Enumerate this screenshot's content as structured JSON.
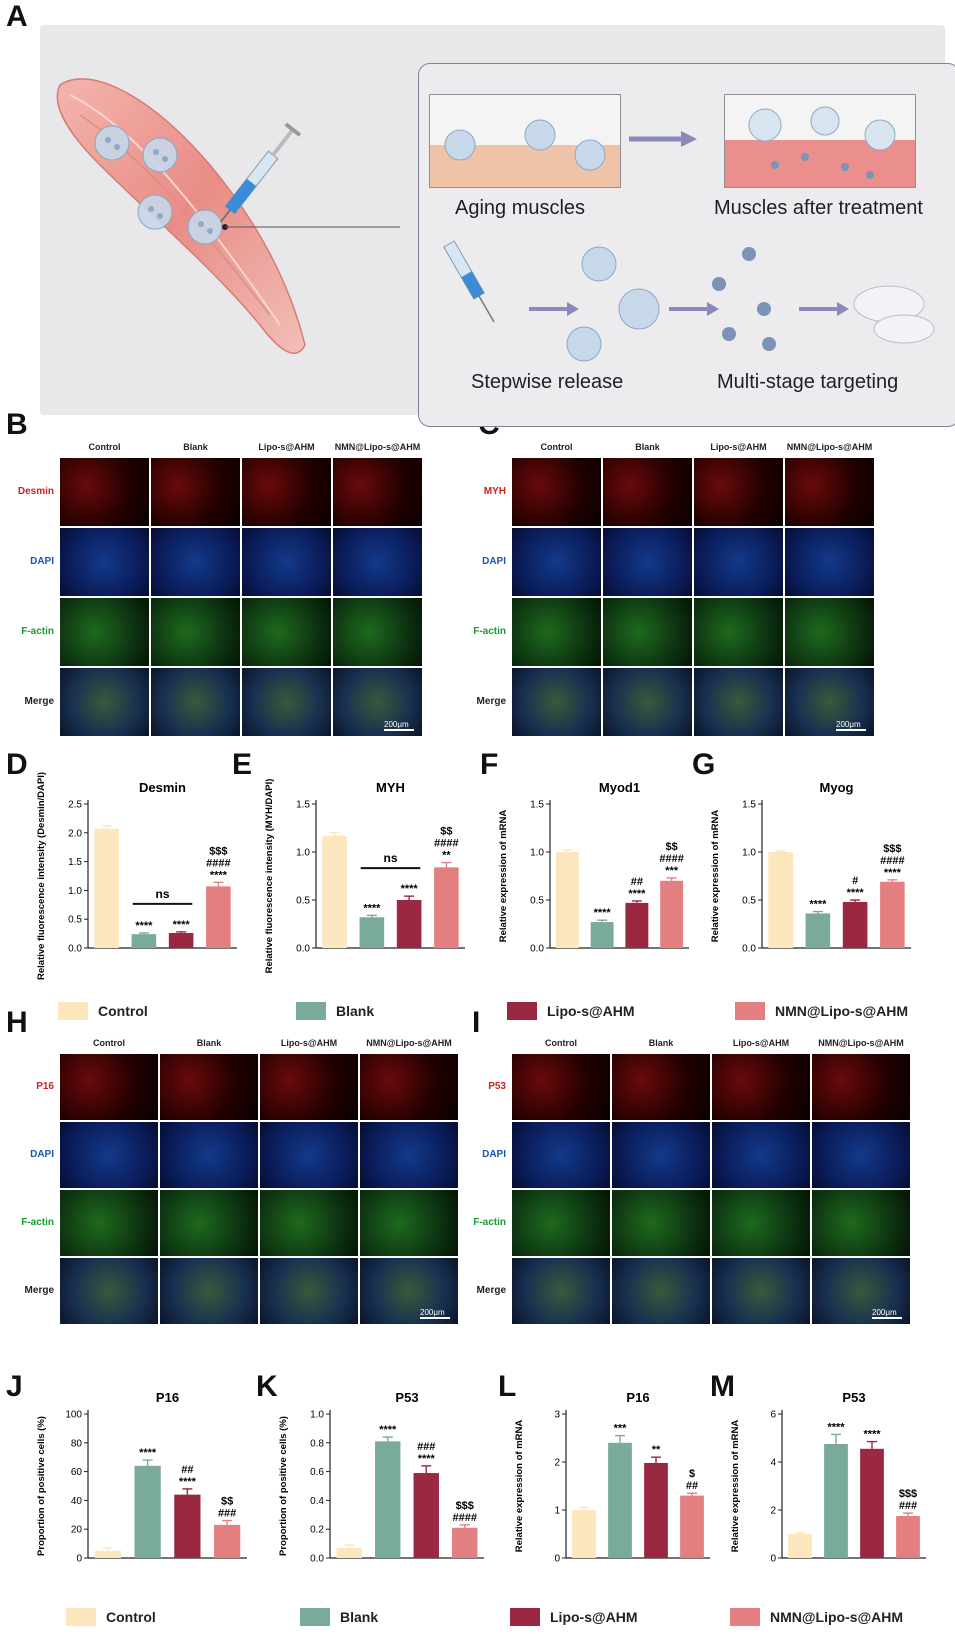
{
  "panel_labels": {
    "A": "A",
    "B": "B",
    "C": "C",
    "D": "D",
    "E": "E",
    "F": "F",
    "G": "G",
    "H": "H",
    "I": "I",
    "J": "J",
    "K": "K",
    "L": "L",
    "M": "M"
  },
  "schematic": {
    "aging": "Aging muscles",
    "after": "Muscles after treatment",
    "stepwise": "Stepwise release",
    "multistage": "Multi-stage targeting"
  },
  "groups": [
    "Control",
    "Blank",
    "Lipo-s@AHM",
    "NMN@Lipo-s@AHM"
  ],
  "colors": {
    "Control": "#fbe6bd",
    "Blank": "#7aab98",
    "Lipo-s@AHM": "#9a2840",
    "NMN@Lipo-s@AHM": "#e37f80"
  },
  "micro_B": {
    "rows": [
      "Desmin",
      "DAPI",
      "F-actin",
      "Merge"
    ],
    "row_colors": [
      "#d02020",
      "#1a55b5",
      "#1a9a30",
      "#222222"
    ],
    "scale": "200μm"
  },
  "micro_C": {
    "rows": [
      "MYH",
      "DAPI",
      "F-actin",
      "Merge"
    ],
    "row_colors": [
      "#d02020",
      "#1a55b5",
      "#1a9a30",
      "#222222"
    ],
    "scale": "200μm"
  },
  "micro_H": {
    "rows": [
      "P16",
      "DAPI",
      "F-actin",
      "Merge"
    ],
    "row_colors": [
      "#d02020",
      "#1a55b5",
      "#1a9a30",
      "#222222"
    ],
    "scale": "200μm"
  },
  "micro_I": {
    "rows": [
      "P53",
      "DAPI",
      "F-actin",
      "Merge"
    ],
    "row_colors": [
      "#d02020",
      "#1a55b5",
      "#1a9a30",
      "#222222"
    ],
    "scale": "200μm"
  },
  "legend1": [
    "Control",
    "Blank",
    "Lipo-s@AHM",
    "NMN@Lipo-s@AHM"
  ],
  "legend2": [
    "Control",
    "Blank",
    "Lipo-s@AHM",
    "NMN@Lipo-s@AHM"
  ],
  "chart_data": [
    {
      "id": "D",
      "type": "bar",
      "title": "Desmin",
      "ylabel": "Relative fluorescence intensity (Desmin/DAPI)",
      "ylim": [
        0,
        2.5
      ],
      "yticks": [
        "0.0",
        "0.5",
        "1.0",
        "1.5",
        "2.0",
        "2.5"
      ],
      "categories": [
        "Control",
        "Blank",
        "Lipo-s@AHM",
        "NMN@Lipo-s@AHM"
      ],
      "values": [
        2.07,
        0.24,
        0.26,
        1.07
      ],
      "errors": [
        0.05,
        0.02,
        0.02,
        0.07
      ],
      "annotations": [
        [],
        [
          "****"
        ],
        [
          "****"
        ],
        [
          "$$$",
          "####",
          "****"
        ]
      ],
      "ns": true
    },
    {
      "id": "E",
      "type": "bar",
      "title": "MYH",
      "ylabel": "Relative fluorescence intensity (MYH/DAPI)",
      "ylim": [
        0,
        1.5
      ],
      "yticks": [
        "0.0",
        "0.5",
        "1.0",
        "1.5"
      ],
      "categories": [
        "Control",
        "Blank",
        "Lipo-s@AHM",
        "NMN@Lipo-s@AHM"
      ],
      "values": [
        1.17,
        0.32,
        0.5,
        0.84
      ],
      "errors": [
        0.03,
        0.02,
        0.04,
        0.05
      ],
      "annotations": [
        [],
        [
          "****"
        ],
        [
          "****"
        ],
        [
          "$$",
          "####",
          "**"
        ]
      ],
      "ns": true
    },
    {
      "id": "F",
      "type": "bar",
      "title": "Myod1",
      "ylabel": "Relative expression of mRNA",
      "ylim": [
        0,
        1.5
      ],
      "yticks": [
        "0.0",
        "0.5",
        "1.0",
        "1.5"
      ],
      "categories": [
        "Control",
        "Blank",
        "Lipo-s@AHM",
        "NMN@Lipo-s@AHM"
      ],
      "values": [
        1.0,
        0.27,
        0.47,
        0.7
      ],
      "errors": [
        0.02,
        0.02,
        0.02,
        0.03
      ],
      "annotations": [
        [],
        [
          "****"
        ],
        [
          "##",
          "****"
        ],
        [
          "$$",
          "####",
          "***"
        ]
      ],
      "ns": false
    },
    {
      "id": "G",
      "type": "bar",
      "title": "Myog",
      "ylabel": "Relative expression of mRNA",
      "ylim": [
        0,
        1.5
      ],
      "yticks": [
        "0.0",
        "0.5",
        "1.0",
        "1.5"
      ],
      "categories": [
        "Control",
        "Blank",
        "Lipo-s@AHM",
        "NMN@Lipo-s@AHM"
      ],
      "values": [
        1.0,
        0.36,
        0.48,
        0.69
      ],
      "errors": [
        0.01,
        0.02,
        0.02,
        0.02
      ],
      "annotations": [
        [],
        [
          "****"
        ],
        [
          "#",
          "****"
        ],
        [
          "$$$",
          "####",
          "****"
        ]
      ],
      "ns": false
    },
    {
      "id": "J",
      "type": "bar",
      "title": "P16",
      "ylabel": "Proportion of positive cells (%)",
      "ylim": [
        0,
        100
      ],
      "yticks": [
        "0",
        "20",
        "40",
        "60",
        "80",
        "100"
      ],
      "categories": [
        "Control",
        "Blank",
        "Lipo-s@AHM",
        "NMN@Lipo-s@AHM"
      ],
      "values": [
        5,
        64,
        44,
        23
      ],
      "errors": [
        2,
        4,
        4,
        3
      ],
      "annotations": [
        [],
        [
          "****"
        ],
        [
          "##",
          "****"
        ],
        [
          "$$",
          "###"
        ]
      ],
      "ns": false
    },
    {
      "id": "K",
      "type": "bar",
      "title": "P53",
      "ylabel": "Proportion of positive cells (%)",
      "ylim": [
        0,
        1.0
      ],
      "yticks": [
        "0.0",
        "0.2",
        "0.4",
        "0.6",
        "0.8",
        "1.0"
      ],
      "categories": [
        "Control",
        "Blank",
        "Lipo-s@AHM",
        "NMN@Lipo-s@AHM"
      ],
      "values": [
        0.07,
        0.81,
        0.59,
        0.21
      ],
      "errors": [
        0.02,
        0.03,
        0.05,
        0.02
      ],
      "annotations": [
        [],
        [
          "****"
        ],
        [
          "###",
          "****"
        ],
        [
          "$$$",
          "####"
        ]
      ],
      "ns": false
    },
    {
      "id": "L",
      "type": "bar",
      "title": "P16",
      "ylabel": "Relative expression of mRNA",
      "ylim": [
        0,
        3
      ],
      "yticks": [
        "0",
        "1",
        "2",
        "3"
      ],
      "categories": [
        "Control",
        "Blank",
        "Lipo-s@AHM",
        "NMN@Lipo-s@AHM"
      ],
      "values": [
        1.0,
        2.4,
        1.98,
        1.3
      ],
      "errors": [
        0.05,
        0.15,
        0.12,
        0.05
      ],
      "annotations": [
        [],
        [
          "***"
        ],
        [
          "**"
        ],
        [
          "$",
          "##"
        ]
      ],
      "ns": false
    },
    {
      "id": "M",
      "type": "bar",
      "title": "P53",
      "ylabel": "Relative expression of mRNA",
      "ylim": [
        0,
        6
      ],
      "yticks": [
        "0",
        "2",
        "4",
        "6"
      ],
      "categories": [
        "Control",
        "Blank",
        "Lipo-s@AHM",
        "NMN@Lipo-s@AHM"
      ],
      "values": [
        1.0,
        4.75,
        4.55,
        1.75
      ],
      "errors": [
        0.05,
        0.4,
        0.3,
        0.12
      ],
      "annotations": [
        [],
        [
          "****"
        ],
        [
          "****"
        ],
        [
          "$$$",
          "###"
        ]
      ],
      "ns": false
    }
  ]
}
